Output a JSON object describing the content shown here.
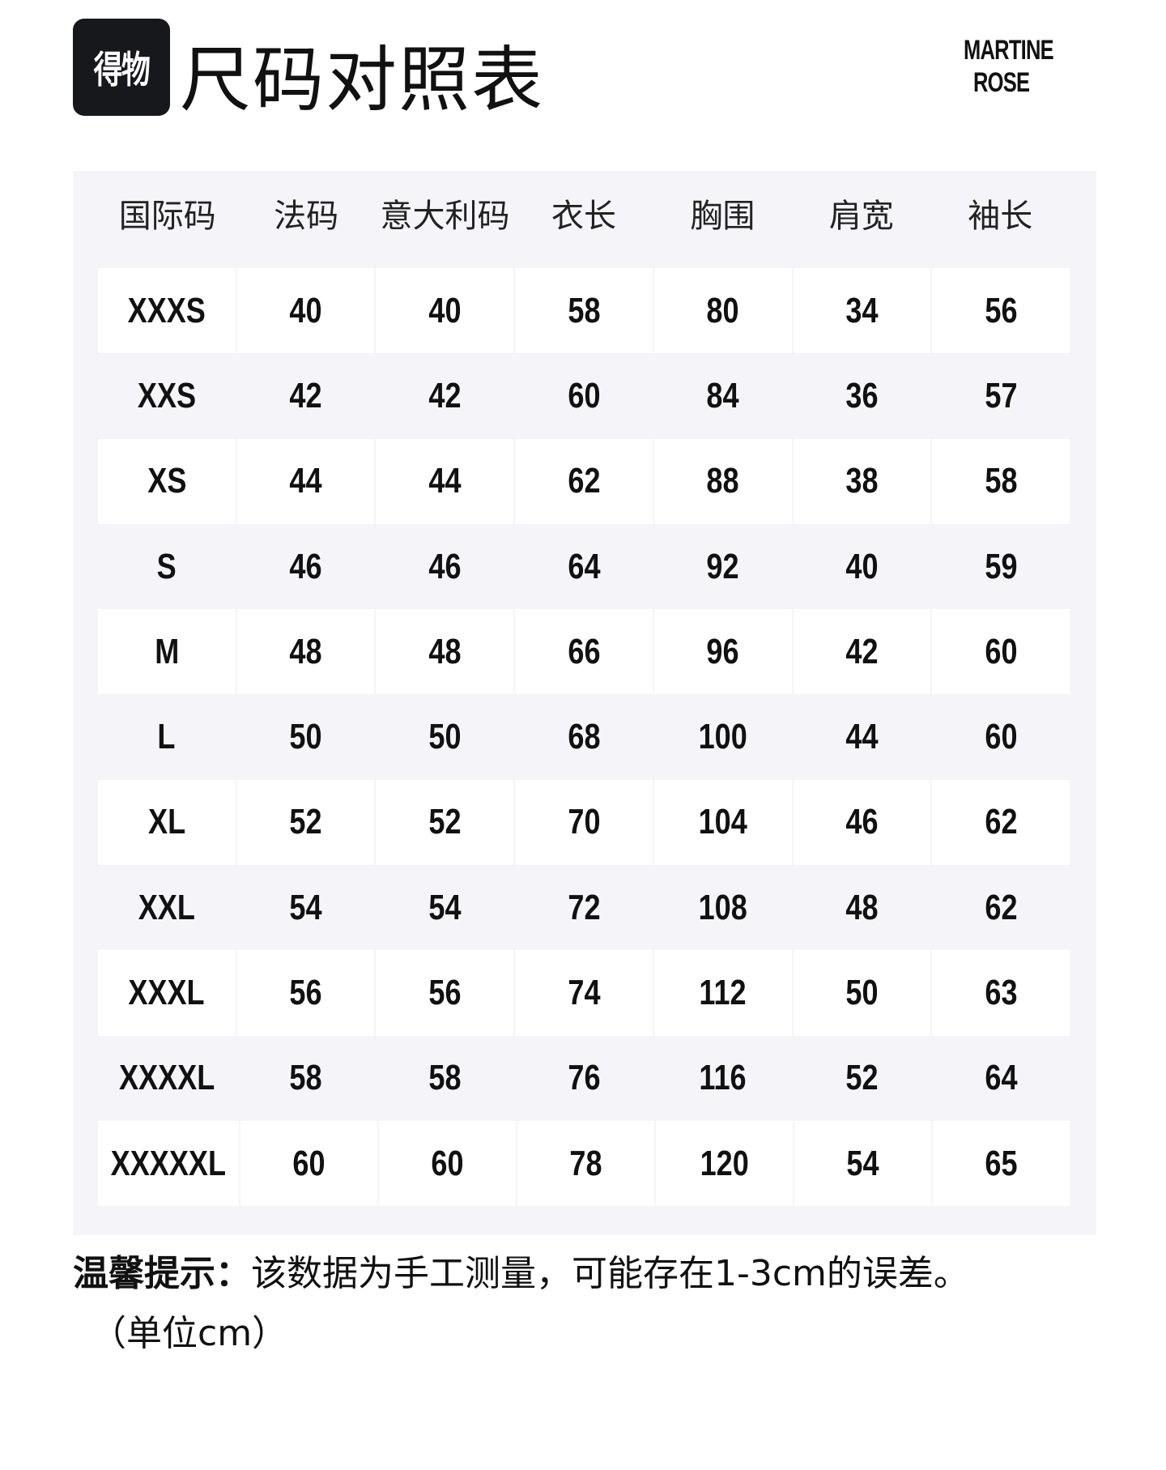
{
  "brand_logo": {
    "text": "得物",
    "bg_color": "#17181c"
  },
  "title": "尺码对照表",
  "partner_logo": {
    "line1": "MARTINE",
    "line2": "ROSE"
  },
  "table": {
    "headers": [
      "国际码",
      "法码",
      "意大利码",
      "衣长",
      "胸围",
      "肩宽",
      "袖长"
    ],
    "rows": [
      [
        "XXXS",
        "40",
        "40",
        "58",
        "80",
        "34",
        "56"
      ],
      [
        "XXS",
        "42",
        "42",
        "60",
        "84",
        "36",
        "57"
      ],
      [
        "XS",
        "44",
        "44",
        "62",
        "88",
        "38",
        "58"
      ],
      [
        "S",
        "46",
        "46",
        "64",
        "92",
        "40",
        "59"
      ],
      [
        "M",
        "48",
        "48",
        "66",
        "96",
        "42",
        "60"
      ],
      [
        "L",
        "50",
        "50",
        "68",
        "100",
        "44",
        "60"
      ],
      [
        "XL",
        "52",
        "52",
        "70",
        "104",
        "46",
        "62"
      ],
      [
        "XXL",
        "54",
        "54",
        "72",
        "108",
        "48",
        "62"
      ],
      [
        "XXXL",
        "56",
        "56",
        "74",
        "112",
        "50",
        "63"
      ],
      [
        "XXXXL",
        "58",
        "58",
        "76",
        "116",
        "52",
        "64"
      ],
      [
        "XXXXXL",
        "60",
        "60",
        "78",
        "120",
        "54",
        "65"
      ]
    ]
  },
  "note": {
    "label": "温馨提示：",
    "text": "该数据为手工测量，可能存在1-3cm的误差。",
    "unit": "（单位cm）"
  }
}
